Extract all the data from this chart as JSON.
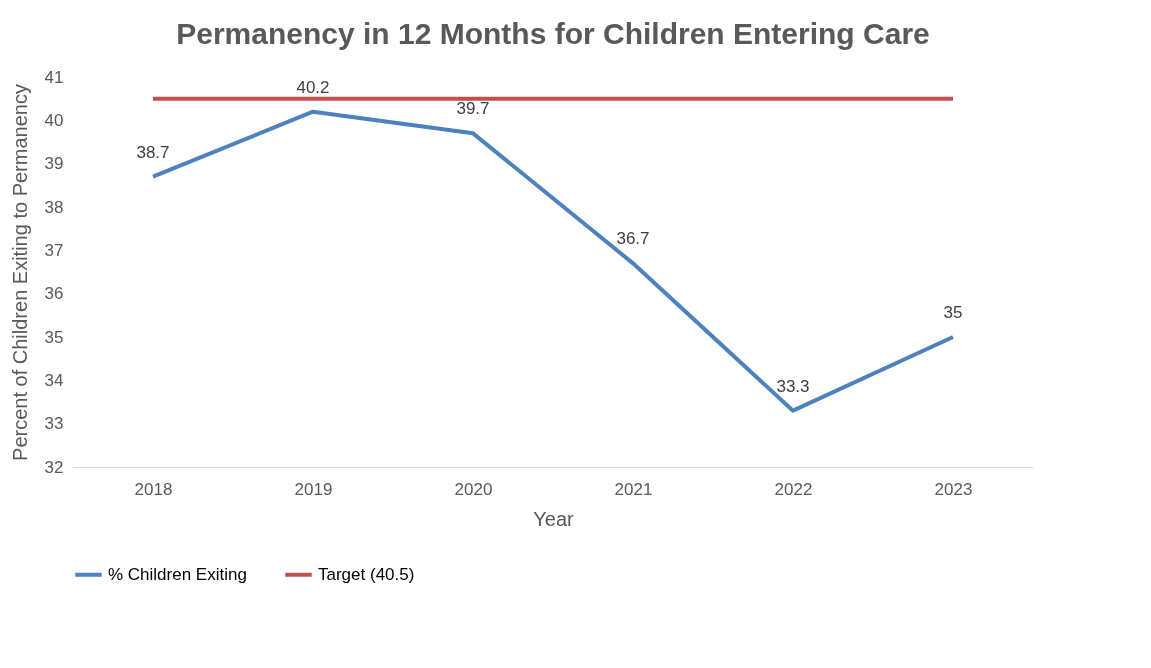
{
  "chart_data": {
    "type": "line",
    "title": "Permanency in 12 Months for Children Entering Care",
    "xlabel": "Year",
    "ylabel": "Percent of Children Exiting to Permanency",
    "categories": [
      "2018",
      "2019",
      "2020",
      "2021",
      "2022",
      "2023"
    ],
    "series": [
      {
        "name": "% Children Exiting",
        "color": "#4f81bd",
        "values": [
          38.7,
          40.2,
          39.7,
          36.7,
          33.3,
          35
        ],
        "value_labels": [
          "38.7",
          "40.2",
          "39.7",
          "36.7",
          "33.3",
          "35"
        ]
      },
      {
        "name": "Target (40.5)",
        "color": "#c0504d",
        "values": [
          40.5,
          40.5,
          40.5,
          40.5,
          40.5,
          40.5
        ]
      }
    ],
    "ylim": [
      32,
      41
    ],
    "yticks": [
      32,
      33,
      34,
      35,
      36,
      37,
      38,
      39,
      40,
      41
    ],
    "grid": false,
    "legend": "bottom",
    "marker": "none",
    "line_style": "solid"
  }
}
